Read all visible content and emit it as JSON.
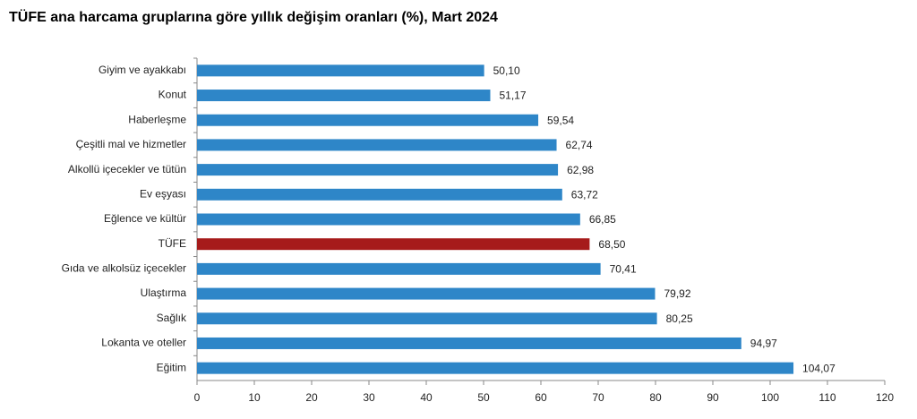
{
  "chart_data": {
    "type": "bar",
    "orientation": "horizontal",
    "title": "TÜFE ana harcama gruplarına göre yıllık değişim oranları (%), Mart 2024",
    "categories": [
      "Giyim ve ayakkabı",
      "Konut",
      "Haberleşme",
      "Çeşitli mal ve hizmetler",
      "Alkollü içecekler ve tütün",
      "Ev eşyası",
      "Eğlence ve kültür",
      "TÜFE",
      "Gıda ve alkolsüz içecekler",
      "Ulaştırma",
      "Sağlık",
      "Lokanta ve oteller",
      "Eğitim"
    ],
    "values": [
      50.1,
      51.17,
      59.54,
      62.74,
      62.98,
      63.72,
      66.85,
      68.5,
      70.41,
      79.92,
      80.25,
      94.97,
      104.07
    ],
    "value_labels": [
      "50,10",
      "51,17",
      "59,54",
      "62,74",
      "62,98",
      "63,72",
      "66,85",
      "68,50",
      "70,41",
      "79,92",
      "80,25",
      "94,97",
      "104,07"
    ],
    "colors": [
      "#2e86c8",
      "#2e86c8",
      "#2e86c8",
      "#2e86c8",
      "#2e86c8",
      "#2e86c8",
      "#2e86c8",
      "#a61b1b",
      "#2e86c8",
      "#2e86c8",
      "#2e86c8",
      "#2e86c8",
      "#2e86c8"
    ],
    "xlim": [
      0,
      120
    ],
    "xticks": [
      0,
      10,
      20,
      30,
      40,
      50,
      60,
      70,
      80,
      90,
      100,
      110,
      120
    ],
    "grid": false
  }
}
